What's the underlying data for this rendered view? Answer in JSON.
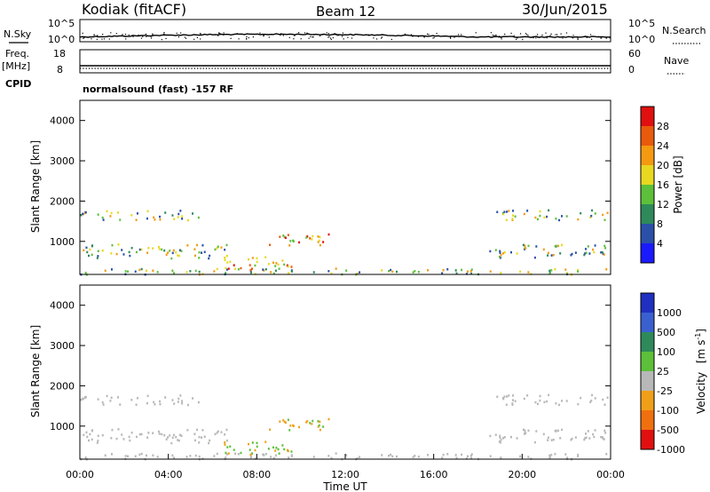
{
  "header": {
    "station": "Kodiak (fitACF)",
    "beam": "Beam 12",
    "date": "30/Jun/2015"
  },
  "noise_panel": {
    "left_label": "N.Sky",
    "right_label": "N.Search",
    "left_ticks": [
      "10^5",
      "10^0"
    ],
    "right_ticks": [
      "10^5",
      "10^0"
    ]
  },
  "freq_panel": {
    "left_label_line1": "Freq.",
    "left_label_line2": "[MHz]",
    "right_label": "Nave",
    "left_ticks": [
      "18",
      "8"
    ],
    "right_ticks": [
      "60",
      "0"
    ]
  },
  "cpid": {
    "label": "CPID",
    "text": "normalsound (fast) -157 RF"
  },
  "x_axis": {
    "label": "Time UT",
    "ticks": [
      "00:00",
      "04:00",
      "08:00",
      "12:00",
      "16:00",
      "20:00",
      "00:00"
    ]
  },
  "y_axis": {
    "label": "Slant Range [km]",
    "ticks": [
      "1000",
      "2000",
      "3000",
      "4000"
    ]
  },
  "power_scale": {
    "label": "Power [dB]",
    "ticks": [
      "4",
      "8",
      "12",
      "16",
      "20",
      "24",
      "28"
    ],
    "colors": [
      "#1a1aff",
      "#2b50a8",
      "#2e8a5a",
      "#5cc03a",
      "#e8d820",
      "#f39a10",
      "#ea5a0c",
      "#e01010"
    ]
  },
  "velocity_scale": {
    "label_main": "Velocity",
    "label_unit": "[m s",
    "label_sup": "-1",
    "label_close": "]",
    "ticks": [
      "1000",
      "500",
      "100",
      "25",
      "-25",
      "-100",
      "-500",
      "-1000"
    ],
    "colors": [
      "#2030c0",
      "#3a60d0",
      "#2e8a5a",
      "#5cc03a",
      "#b8b8b8",
      "#f0a018",
      "#f07010",
      "#e01010"
    ]
  },
  "chart_data": {
    "type": "heatmap",
    "x_range_hours": [
      0,
      24
    ],
    "y_range_km": [
      180,
      4500
    ],
    "echo_regions": [
      {
        "name": "near-range band",
        "t0": 0,
        "t1": 24,
        "r0": 200,
        "r1": 350
      },
      {
        "name": "1/2-hop band",
        "t0": 0,
        "t1": 6.8,
        "r0": 600,
        "r1": 950
      },
      {
        "name": "1/2-hop band late",
        "t0": 18.5,
        "t1": 24,
        "r0": 600,
        "r1": 950
      },
      {
        "name": "upper band",
        "t0": 0,
        "t1": 5.5,
        "r0": 1550,
        "r1": 1800
      },
      {
        "name": "upper band late",
        "t0": 18.5,
        "t1": 24,
        "r0": 1550,
        "r1": 1800
      },
      {
        "name": "midday patch",
        "t0": 8.5,
        "t1": 11.5,
        "r0": 900,
        "r1": 1200
      },
      {
        "name": "morning patch",
        "t0": 6.5,
        "t1": 9.8,
        "r0": 300,
        "r1": 650
      }
    ]
  }
}
